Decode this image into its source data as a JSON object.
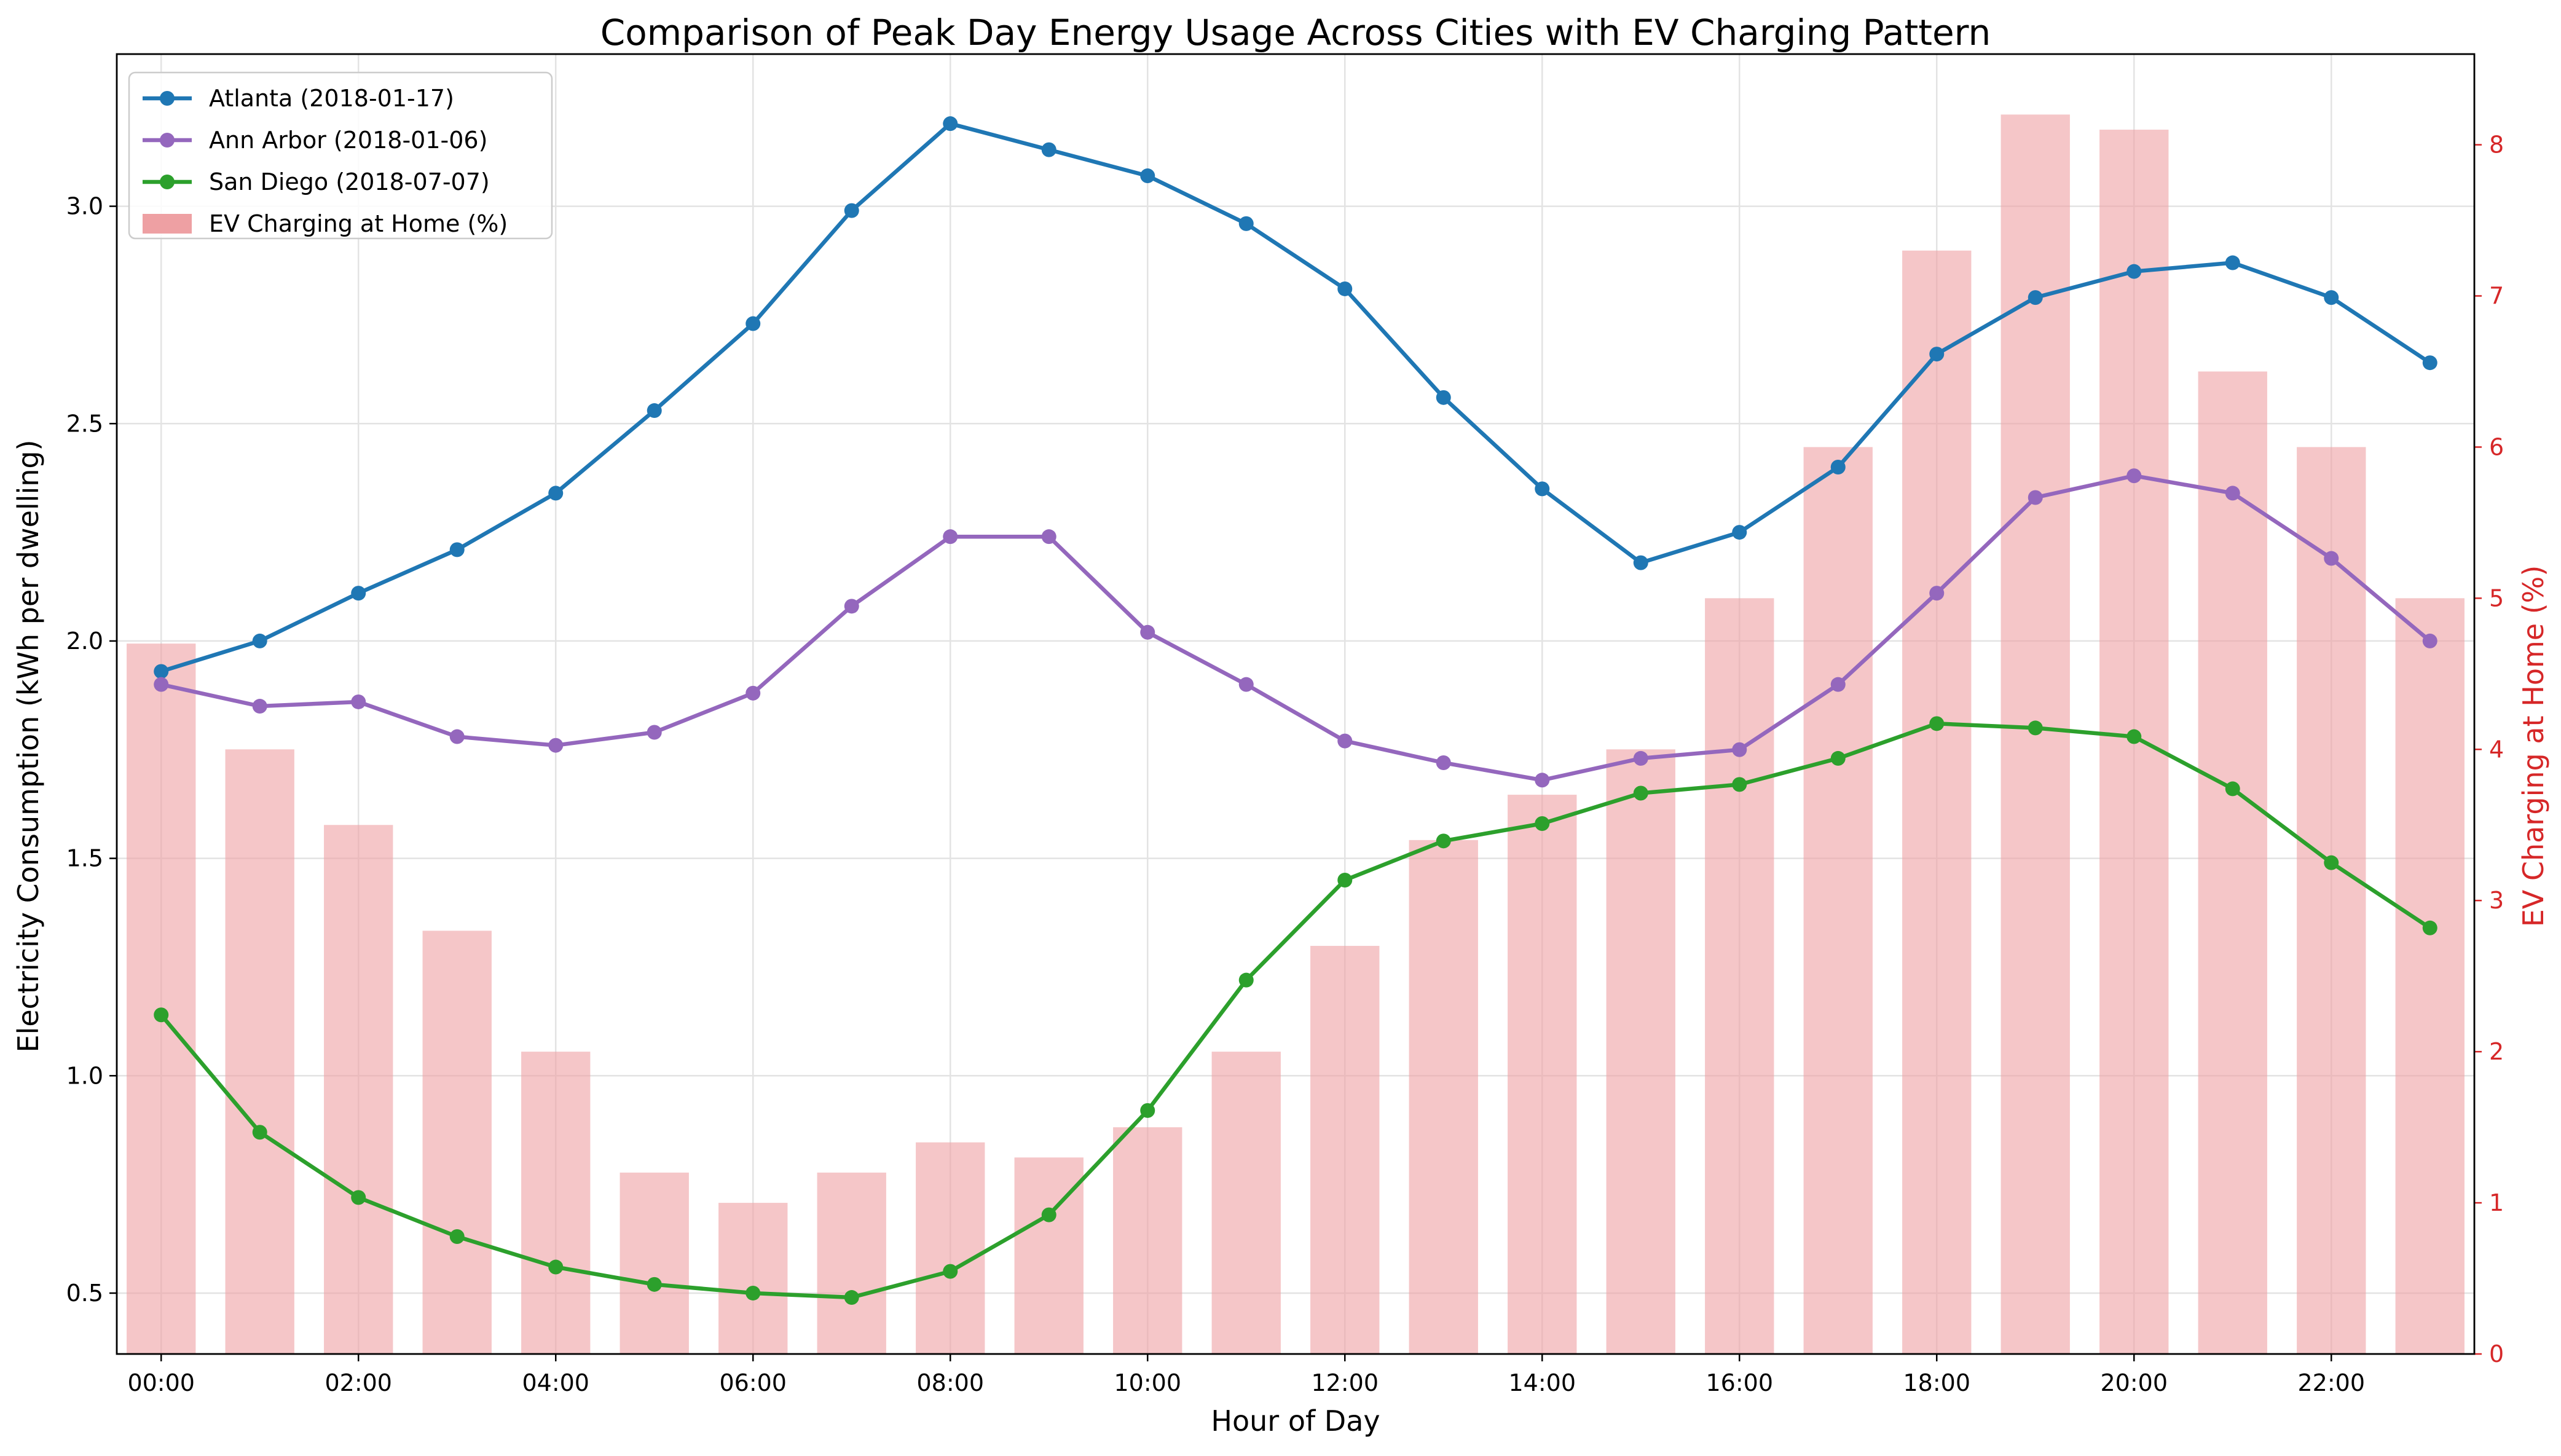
{
  "chart_data": {
    "type": "line",
    "title": "Comparison of Peak Day Energy Usage Across Cities with EV Charging Pattern",
    "xlabel": "Hour of Day",
    "ylabel_left": "Electricity Consumption (kWh per dwelling)",
    "ylabel_right": "EV Charging at Home (%)",
    "grid": true,
    "legend_position": "top-left",
    "y_left_range": [
      0.36,
      3.35
    ],
    "y_right_range": [
      0,
      8.6
    ],
    "x_tick_labels": [
      "00:00",
      "02:00",
      "04:00",
      "06:00",
      "08:00",
      "10:00",
      "12:00",
      "14:00",
      "16:00",
      "18:00",
      "20:00",
      "22:00"
    ],
    "y_left_ticks": [
      "0.5",
      "1.0",
      "1.5",
      "2.0",
      "2.5",
      "3.0"
    ],
    "y_right_ticks": [
      "0",
      "1",
      "2",
      "3",
      "4",
      "5",
      "6",
      "7",
      "8"
    ],
    "hours": [
      0,
      1,
      2,
      3,
      4,
      5,
      6,
      7,
      8,
      9,
      10,
      11,
      12,
      13,
      14,
      15,
      16,
      17,
      18,
      19,
      20,
      21,
      22,
      23
    ],
    "series": [
      {
        "name": "Atlanta (2018-01-17)",
        "color": "#1f77b4",
        "axis": "left",
        "values": [
          1.93,
          2.0,
          2.11,
          2.21,
          2.34,
          2.53,
          2.73,
          2.99,
          3.19,
          3.13,
          3.07,
          2.96,
          2.81,
          2.56,
          2.35,
          2.18,
          2.25,
          2.4,
          2.66,
          2.79,
          2.85,
          2.87,
          2.79,
          2.64
        ]
      },
      {
        "name": "Ann Arbor (2018-01-06)",
        "color": "#9467bd",
        "axis": "left",
        "values": [
          1.9,
          1.85,
          1.86,
          1.78,
          1.76,
          1.79,
          1.88,
          2.08,
          2.24,
          2.24,
          2.02,
          1.9,
          1.77,
          1.72,
          1.68,
          1.73,
          1.75,
          1.9,
          2.11,
          2.33,
          2.38,
          2.34,
          2.19,
          2.0
        ]
      },
      {
        "name": "San Diego (2018-07-07)",
        "color": "#2ca02c",
        "axis": "left",
        "values": [
          1.14,
          0.87,
          0.72,
          0.63,
          0.56,
          0.52,
          0.5,
          0.49,
          0.55,
          0.68,
          0.92,
          1.22,
          1.45,
          1.54,
          1.58,
          1.65,
          1.67,
          1.73,
          1.81,
          1.8,
          1.78,
          1.66,
          1.49,
          1.34
        ]
      }
    ],
    "bars": {
      "name": "EV Charging at Home (%)",
      "color": "#eea0a3",
      "axis": "right",
      "values": [
        4.7,
        4.0,
        3.5,
        2.8,
        2.0,
        1.2,
        1.0,
        1.2,
        1.4,
        1.3,
        1.5,
        2.0,
        2.7,
        3.4,
        3.7,
        4.0,
        5.0,
        6.0,
        7.3,
        8.2,
        8.1,
        6.5,
        6.0,
        5.0
      ]
    }
  }
}
